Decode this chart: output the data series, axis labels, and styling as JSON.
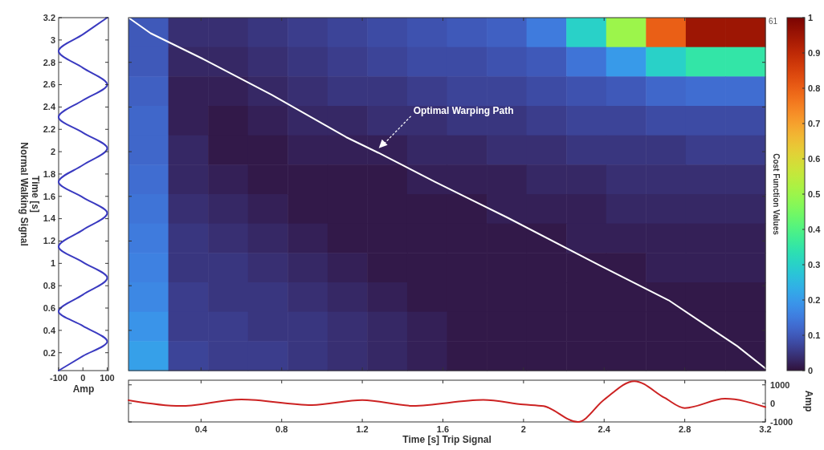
{
  "chart_data": [
    {
      "type": "line",
      "xlabel": "Amp",
      "ylabel": "Time [s]\nNormal Walking Signal",
      "xlim": [
        -100,
        105
      ],
      "xticks": [
        -100,
        0,
        100
      ],
      "ylim": [
        0.04,
        3.2
      ],
      "yticks": [
        0.2,
        0.4,
        0.6,
        0.8,
        1,
        1.2,
        1.4,
        1.6,
        1.8,
        2,
        2.2,
        2.4,
        2.6,
        2.8,
        3,
        3.2
      ],
      "series": [
        {
          "color": "#3a3ac0",
          "x": [
            -100,
            0,
            100,
            0,
            -100,
            0,
            100,
            0,
            -100,
            0,
            100,
            0,
            -100,
            0,
            100,
            0,
            -100,
            0,
            100,
            0,
            -100,
            0,
            100
          ],
          "values": [
            0.04,
            0.17,
            0.3,
            0.44,
            0.57,
            0.72,
            0.87,
            1.01,
            1.15,
            1.3,
            1.45,
            1.59,
            1.73,
            1.88,
            2.03,
            2.17,
            2.31,
            2.46,
            2.6,
            2.75,
            2.9,
            3.05,
            3.2
          ]
        }
      ]
    },
    {
      "type": "heatmap",
      "clabel": "Cost Function Values",
      "clim": [
        0,
        1
      ],
      "cticks": [
        0,
        0.1,
        0.2,
        0.3,
        0.4,
        0.5,
        0.6,
        0.7,
        0.8,
        0.9,
        1
      ],
      "categories": [
        null,
        null,
        null,
        null,
        null,
        null,
        null,
        null,
        null,
        null,
        null,
        null,
        null,
        null,
        null,
        null
      ],
      "y_categories": [
        null,
        null,
        null,
        null,
        null,
        null,
        null,
        null,
        null,
        null,
        null,
        null
      ],
      "cells": [
        [
          0.1,
          0.04,
          0.04,
          0.05,
          0.06,
          0.07,
          0.08,
          0.09,
          0.1,
          0.11,
          0.15,
          0.3,
          0.5,
          0.8,
          0.95,
          0.95
        ],
        [
          0.1,
          0.03,
          0.03,
          0.04,
          0.05,
          0.06,
          0.07,
          0.08,
          0.08,
          0.09,
          0.1,
          0.14,
          0.2,
          0.3,
          0.35,
          0.35
        ],
        [
          0.11,
          0.02,
          0.02,
          0.03,
          0.04,
          0.05,
          0.05,
          0.06,
          0.07,
          0.07,
          0.08,
          0.09,
          0.1,
          0.12,
          0.13,
          0.13
        ],
        [
          0.12,
          0.02,
          0.01,
          0.02,
          0.03,
          0.03,
          0.04,
          0.04,
          0.05,
          0.05,
          0.06,
          0.07,
          0.07,
          0.08,
          0.08,
          0.08
        ],
        [
          0.12,
          0.03,
          0.01,
          0.01,
          0.02,
          0.02,
          0.02,
          0.03,
          0.03,
          0.04,
          0.04,
          0.05,
          0.05,
          0.05,
          0.06,
          0.06
        ],
        [
          0.13,
          0.03,
          0.02,
          0.01,
          0.01,
          0.01,
          0.01,
          0.02,
          0.02,
          0.02,
          0.03,
          0.03,
          0.04,
          0.04,
          0.04,
          0.04
        ],
        [
          0.14,
          0.04,
          0.03,
          0.02,
          0.01,
          0.01,
          0.01,
          0.01,
          0.01,
          0.02,
          0.02,
          0.02,
          0.03,
          0.03,
          0.03,
          0.03
        ],
        [
          0.15,
          0.05,
          0.04,
          0.03,
          0.02,
          0.01,
          0.01,
          0.01,
          0.01,
          0.01,
          0.01,
          0.02,
          0.02,
          0.02,
          0.02,
          0.02
        ],
        [
          0.16,
          0.05,
          0.05,
          0.04,
          0.03,
          0.02,
          0.01,
          0.01,
          0.01,
          0.01,
          0.01,
          0.01,
          0.01,
          0.02,
          0.02,
          0.02
        ],
        [
          0.17,
          0.06,
          0.05,
          0.05,
          0.04,
          0.03,
          0.02,
          0.01,
          0.01,
          0.01,
          0.01,
          0.01,
          0.01,
          0.01,
          0.01,
          0.01
        ],
        [
          0.19,
          0.06,
          0.06,
          0.05,
          0.05,
          0.04,
          0.03,
          0.02,
          0.01,
          0.01,
          0.01,
          0.01,
          0.01,
          0.01,
          0.01,
          0.01
        ],
        [
          0.21,
          0.07,
          0.06,
          0.06,
          0.05,
          0.04,
          0.03,
          0.02,
          0.01,
          0.01,
          0.01,
          0.01,
          0.01,
          0.01,
          0.01,
          0.01
        ]
      ],
      "annotations": [
        "61"
      ]
    },
    {
      "type": "line",
      "xlim": [
        0.04,
        3.2
      ],
      "ylim": [
        0.04,
        3.2
      ],
      "tick_labels": false,
      "xticks": [
        0.4,
        0.8,
        1.2,
        1.6,
        2,
        2.4,
        2.8
      ],
      "yticks": [
        0.4,
        0.8,
        1.2,
        1.6,
        2,
        2.4,
        2.8
      ],
      "series": [
        {
          "color": "#ffffff",
          "x": [
            0.04,
            0.15,
            0.41,
            0.75,
            1.12,
            1.28,
            1.56,
            1.92,
            2.38,
            2.72,
            2.86,
            3.06,
            3.2
          ],
          "values": [
            3.2,
            3.06,
            2.83,
            2.51,
            2.13,
            1.99,
            1.73,
            1.41,
            0.98,
            0.67,
            0.5,
            0.26,
            0.06
          ]
        }
      ],
      "annotations": [
        "Optimal Warping Path"
      ]
    },
    {
      "type": "line",
      "xlabel": "Time [s] Trip Signal",
      "ylabel": "Amp",
      "xlim": [
        0.04,
        3.2
      ],
      "xticks": [
        0.4,
        0.8,
        1.2,
        1.6,
        2,
        2.4,
        2.8,
        3.2
      ],
      "ylim": [
        -1000,
        1250
      ],
      "yticks": [
        -1000,
        0,
        1000
      ],
      "series": [
        {
          "color": "#cc2222",
          "x": [
            0.04,
            0.3,
            0.6,
            0.95,
            1.2,
            1.45,
            1.8,
            2,
            2.1,
            2.27,
            2.4,
            2.55,
            2.7,
            2.8,
            3,
            3.2
          ],
          "values": [
            170,
            -140,
            210,
            -90,
            180,
            -130,
            190,
            -60,
            -150,
            -1000,
            200,
            1200,
            300,
            -250,
            250,
            -200
          ]
        }
      ]
    }
  ]
}
